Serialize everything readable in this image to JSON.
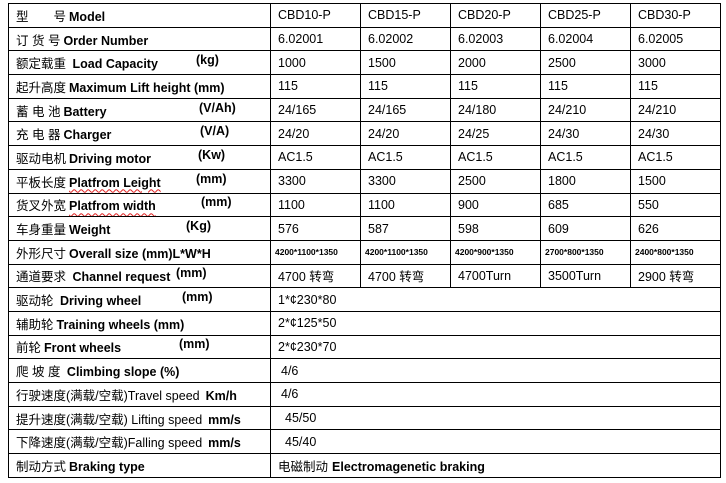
{
  "rows": [
    {
      "cn": "型　　号",
      "en": "Model",
      "unit": "",
      "values": [
        "CBD10-P",
        "CBD15-P",
        "CBD20-P",
        "CBD25-P",
        "CBD30-P"
      ]
    },
    {
      "cn": "订 货 号",
      "en": "Order Number",
      "unit": "",
      "values": [
        "6.02001",
        "6.02002",
        "6.02003",
        "6.02004",
        "6.02005"
      ]
    },
    {
      "cn": "额定载重 ",
      "en": "Load Capacity",
      "unit": "(kg)",
      "values": [
        "1000",
        "1500",
        "2000",
        "2500",
        "3000"
      ]
    },
    {
      "cn": "起升高度",
      "en": "Maximum Lift height (mm)",
      "unit": "",
      "values": [
        "115",
        "115",
        "115",
        "115",
        "115"
      ]
    },
    {
      "cn": "蓄 电 池",
      "en": "Battery",
      "unit": "(V/Ah)",
      "values": [
        "24/165",
        "24/165",
        "24/180",
        "24/210",
        "24/210"
      ]
    },
    {
      "cn": "充 电 器",
      "en": "Charger",
      "unit": "(V/A)",
      "values": [
        "24/20",
        "24/20",
        "24/25",
        "24/30",
        "24/30"
      ]
    },
    {
      "cn": "驱动电机",
      "en": "Driving motor",
      "unit": "(Kw)",
      "values": [
        "AC1.5",
        "AC1.5",
        "AC1.5",
        "AC1.5",
        "AC1.5"
      ]
    },
    {
      "cn": "平板长度",
      "en": "Platfrom Leight",
      "unit": "(mm)",
      "values": [
        "3300",
        "3300",
        "2500",
        "1800",
        "1500"
      ]
    },
    {
      "cn": "货叉外宽",
      "en": "Platfrom width",
      "unit": "(mm)",
      "values": [
        "1100",
        "1100",
        "900",
        "685",
        "550"
      ]
    },
    {
      "cn": "车身重量",
      "en": "Weight",
      "unit": "(Kg)",
      "values": [
        "576",
        "587",
        "598",
        "609",
        "626"
      ]
    },
    {
      "cn": "外形尺寸",
      "en": "Overall size (mm)L*W*H",
      "unit": "",
      "values": [
        "4200*1100*1350",
        "4200*1100*1350",
        "4200*900*1350",
        "2700*800*1350",
        "2400*800*1350"
      ]
    },
    {
      "cn": "通道要求 ",
      "en": "Channel request",
      "unit": "(mm)",
      "values": [
        "4700 转弯",
        "4700 转弯",
        "4700Turn",
        "3500Turn",
        "2900 转弯"
      ]
    },
    {
      "cn": "驱动轮 ",
      "en": "Driving wheel",
      "unit": "(mm)",
      "value": "1*¢230*80"
    },
    {
      "cn": "辅助轮",
      "en": "Training wheels (mm)",
      "unit": "",
      "value": "2*¢125*50"
    },
    {
      "cn": "前轮",
      "en": "Front wheels",
      "unit": "(mm)",
      "value": "2*¢230*70"
    },
    {
      "cn": "爬 坡 度 ",
      "en": "Climbing slope (%)",
      "unit": "",
      "value": "4/6"
    },
    {
      "cn": "行驶速度(满载/空载)Travel speed",
      "en": "Km/h",
      "unit": "",
      "value": "4/6"
    },
    {
      "cn": "提升速度(满载/空载) Lifting speed",
      "en": "mm/s",
      "unit": "",
      "value": "45/50"
    },
    {
      "cn": "下降速度(满载/空载)Falling speed",
      "en": "mm/s",
      "unit": "",
      "value": "45/40"
    },
    {
      "cn": "制动方式",
      "en": "Braking type",
      "unit": "",
      "value_cn": "电磁制动",
      "value_en": "Electromagenetic braking"
    }
  ]
}
